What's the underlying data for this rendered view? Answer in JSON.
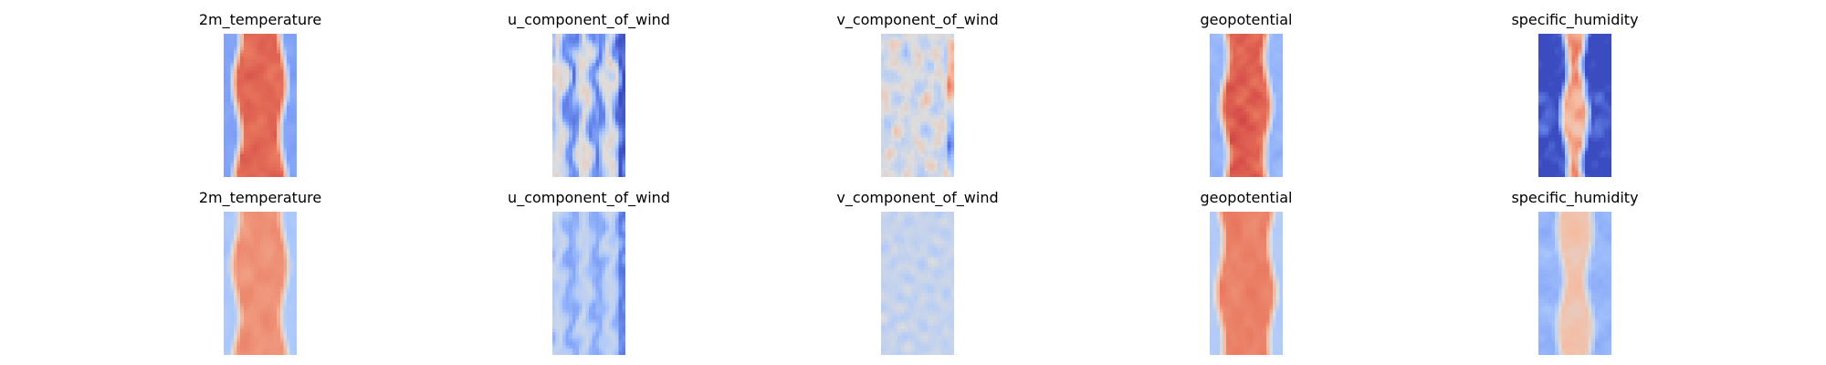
{
  "figure": {
    "rows": 2,
    "cols": 5,
    "colormap": "coolwarm",
    "colormap_stops": [
      "#3b4cc0",
      "#6f92f3",
      "#aac7fd",
      "#dddddd",
      "#f7b89c",
      "#e7745b",
      "#b40426"
    ]
  },
  "chart_data": [
    {
      "type": "heatmap",
      "title": "2m_temperature",
      "row": 0,
      "col": 0,
      "pattern": "band",
      "base_level": 0.85,
      "edge_level": 0.22,
      "band_width": 0.32,
      "noise": 0.05,
      "seed": 11
    },
    {
      "type": "heatmap",
      "title": "u_component_of_wind",
      "row": 0,
      "col": 1,
      "pattern": "streaks",
      "base_level": 0.33,
      "edge_level": 0.33,
      "band_width": 0.5,
      "noise": 0.25,
      "seed": 23
    },
    {
      "type": "heatmap",
      "title": "v_component_of_wind",
      "row": 0,
      "col": 2,
      "pattern": "blotches",
      "base_level": 0.47,
      "edge_level": 0.47,
      "band_width": 0.5,
      "noise": 0.18,
      "seed": 37
    },
    {
      "type": "heatmap",
      "title": "geopotential",
      "row": 0,
      "col": 3,
      "pattern": "band",
      "base_level": 0.86,
      "edge_level": 0.28,
      "band_width": 0.3,
      "noise": 0.06,
      "seed": 41
    },
    {
      "type": "heatmap",
      "title": "specific_humidity",
      "row": 0,
      "col": 4,
      "pattern": "narrow",
      "base_level": 0.72,
      "edge_level": 0.0,
      "band_width": 0.14,
      "noise": 0.18,
      "seed": 53
    },
    {
      "type": "heatmap",
      "title": "2m_temperature",
      "row": 1,
      "col": 0,
      "pattern": "band",
      "base_level": 0.76,
      "edge_level": 0.34,
      "band_width": 0.34,
      "noise": 0.04,
      "seed": 61
    },
    {
      "type": "heatmap",
      "title": "u_component_of_wind",
      "row": 1,
      "col": 1,
      "pattern": "streaks",
      "base_level": 0.33,
      "edge_level": 0.38,
      "band_width": 0.5,
      "noise": 0.12,
      "seed": 71
    },
    {
      "type": "heatmap",
      "title": "v_component_of_wind",
      "row": 1,
      "col": 2,
      "pattern": "blotches",
      "base_level": 0.42,
      "edge_level": 0.42,
      "band_width": 0.5,
      "noise": 0.08,
      "seed": 83
    },
    {
      "type": "heatmap",
      "title": "geopotential",
      "row": 1,
      "col": 3,
      "pattern": "band",
      "base_level": 0.8,
      "edge_level": 0.36,
      "band_width": 0.36,
      "noise": 0.04,
      "seed": 97
    },
    {
      "type": "heatmap",
      "title": "specific_humidity",
      "row": 1,
      "col": 4,
      "pattern": "narrow",
      "base_level": 0.62,
      "edge_level": 0.28,
      "band_width": 0.2,
      "noise": 0.06,
      "seed": 101
    }
  ]
}
